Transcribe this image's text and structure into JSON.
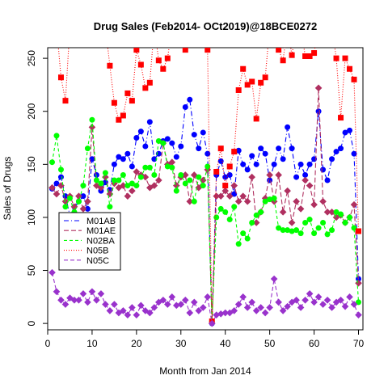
{
  "chart_data": {
    "type": "line",
    "title": "Drug Sales (Feb2014- OCt2019)@18BCE0272",
    "xlabel": "Month from Jan 2014",
    "ylabel": "Sales of Drugs",
    "xlim": [
      0,
      71
    ],
    "ylim": [
      -6,
      260
    ],
    "xticks": [
      0,
      10,
      20,
      30,
      40,
      50,
      60,
      70
    ],
    "yticks": [
      0,
      50,
      100,
      150,
      200,
      250
    ],
    "legend_position": "left",
    "x": [
      1,
      2,
      3,
      4,
      5,
      6,
      7,
      8,
      9,
      10,
      11,
      12,
      13,
      14,
      15,
      16,
      17,
      18,
      19,
      20,
      21,
      22,
      23,
      24,
      25,
      26,
      27,
      28,
      29,
      30,
      31,
      32,
      33,
      34,
      35,
      36,
      37,
      38,
      39,
      40,
      41,
      42,
      43,
      44,
      45,
      46,
      47,
      48,
      49,
      50,
      51,
      52,
      53,
      54,
      55,
      56,
      57,
      58,
      59,
      60,
      61,
      62,
      63,
      64,
      65,
      66,
      67,
      68,
      69,
      70
    ],
    "series": [
      {
        "name": "M01AB",
        "color": "#0000ff",
        "marker": "circle",
        "dash": "6,3,1,3",
        "values": [
          127,
          132,
          138,
          120,
          102,
          110,
          115,
          120,
          108,
          155,
          140,
          125,
          133,
          126,
          150,
          157,
          155,
          160,
          148,
          175,
          181,
          167,
          190,
          155,
          160,
          172,
          174,
          170,
          157,
          167,
          204,
          211,
          178,
          165,
          180,
          160,
          0,
          140,
          153,
          138,
          140,
          122,
          163,
          150,
          145,
          158,
          150,
          165,
          160,
          135,
          150,
          165,
          155,
          185,
          165,
          138,
          150,
          140,
          150,
          155,
          200,
          145,
          135,
          155,
          162,
          165,
          180,
          182,
          160,
          42
        ]
      },
      {
        "name": "M01AE",
        "color": "#b03060",
        "marker": "diamond",
        "dash": "6,3",
        "values": [
          128,
          122,
          130,
          115,
          120,
          110,
          120,
          108,
          115,
          185,
          130,
          128,
          138,
          122,
          132,
          128,
          130,
          120,
          125,
          143,
          140,
          138,
          128,
          130,
          135,
          170,
          150,
          152,
          130,
          138,
          140,
          115,
          140,
          128,
          135,
          145,
          0,
          120,
          120,
          125,
          120,
          130,
          115,
          120,
          115,
          138,
          95,
          105,
          118,
          140,
          115,
          140,
          105,
          125,
          95,
          115,
          108,
          135,
          130,
          112,
          222,
          115,
          105,
          105,
          100,
          102,
          95,
          100,
          112,
          38
        ]
      },
      {
        "name": "N02BA",
        "color": "#00ff00",
        "marker": "circle",
        "dash": "4,3",
        "values": [
          152,
          177,
          145,
          110,
          118,
          105,
          115,
          130,
          165,
          192,
          135,
          132,
          142,
          110,
          135,
          135,
          140,
          130,
          132,
          130,
          138,
          147,
          147,
          140,
          172,
          170,
          148,
          147,
          125,
          140,
          132,
          135,
          115,
          138,
          130,
          148,
          2,
          100,
          108,
          105,
          98,
          110,
          75,
          85,
          80,
          95,
          102,
          105,
          115,
          117,
          118,
          90,
          88,
          88,
          87,
          88,
          85,
          95,
          98,
          85,
          90,
          95,
          84,
          88,
          105,
          103,
          95,
          100,
          90,
          20
        ]
      },
      {
        "name": "N05B",
        "color": "#ff0000",
        "marker": "square",
        "dash": "1,2",
        "values": [
          280,
          280,
          232,
          210,
          280,
          280,
          280,
          280,
          280,
          280,
          280,
          280,
          280,
          243,
          208,
          192,
          196,
          217,
          210,
          258,
          244,
          222,
          227,
          280,
          248,
          240,
          250,
          280,
          280,
          280,
          258,
          280,
          280,
          280,
          280,
          258,
          2,
          143,
          165,
          130,
          148,
          162,
          220,
          240,
          225,
          228,
          193,
          227,
          232,
          280,
          280,
          258,
          248,
          280,
          253,
          280,
          280,
          252,
          252,
          255,
          280,
          280,
          280,
          280,
          250,
          194,
          250,
          240,
          230,
          87
        ]
      },
      {
        "name": "N05C",
        "color": "#9932cc",
        "marker": "diamond",
        "dash": "5,3",
        "values": [
          48,
          30,
          22,
          18,
          24,
          22,
          22,
          28,
          20,
          30,
          22,
          28,
          18,
          12,
          18,
          10,
          12,
          8,
          15,
          8,
          17,
          12,
          10,
          15,
          20,
          22,
          18,
          25,
          17,
          18,
          22,
          10,
          20,
          12,
          15,
          25,
          0,
          8,
          9,
          10,
          10,
          12,
          18,
          25,
          15,
          20,
          12,
          15,
          10,
          15,
          42,
          20,
          12,
          16,
          20,
          22,
          15,
          22,
          28,
          20,
          25,
          18,
          22,
          15,
          20,
          22,
          16,
          25,
          18,
          8
        ]
      }
    ]
  }
}
